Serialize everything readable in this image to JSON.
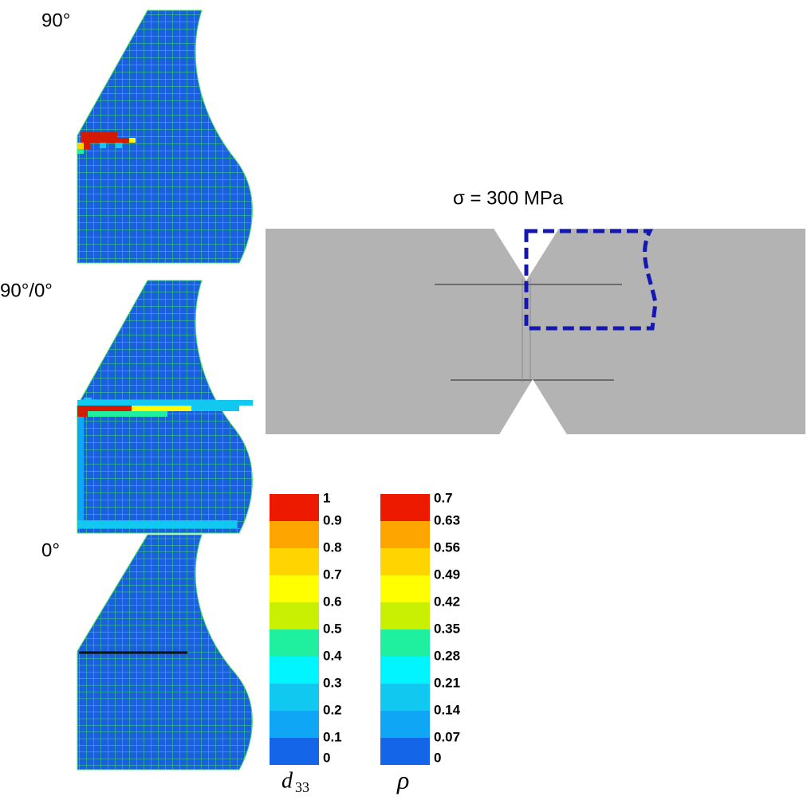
{
  "panels": [
    {
      "label": "90°"
    },
    {
      "label": "90°/0°"
    },
    {
      "label": "0°"
    }
  ],
  "photo": {
    "label": "σ = 300 MPa"
  },
  "colorbars": [
    {
      "symbol": "d",
      "subscript": "33",
      "ticks": [
        0,
        0.1,
        0.2,
        0.3,
        0.4,
        0.5,
        0.6,
        0.7,
        0.8,
        0.9,
        1
      ]
    },
    {
      "symbol": "ρ",
      "ticks": [
        0,
        0.07,
        0.14,
        0.21,
        0.28,
        0.35,
        0.42,
        0.49,
        0.56,
        0.63,
        0.7
      ]
    }
  ],
  "colors": [
    "#1565e8",
    "#0fa6f5",
    "#10c8f0",
    "#00f5ff",
    "#1ef0a0",
    "#c8f000",
    "#ffff00",
    "#ffd400",
    "#ffa500",
    "#ee1a00"
  ]
}
